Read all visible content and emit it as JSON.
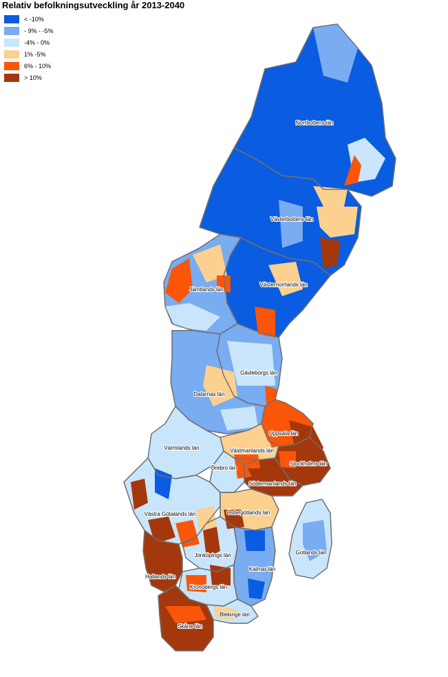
{
  "title": "Relativ befolkningsutveckling år 2013-2040",
  "legend": {
    "items": [
      {
        "label": "< -10%",
        "color": "#0a5ce0"
      },
      {
        "label": "- 9% - -5%",
        "color": "#79acf0"
      },
      {
        "label": "-4% - 0%",
        "color": "#c8e5fb"
      },
      {
        "label": "1% -5%",
        "color": "#fcd08e"
      },
      {
        "label": "6% - 10%",
        "color": "#f9560a"
      },
      {
        "label": "> 10%",
        "color": "#a4380c"
      }
    ]
  },
  "counties": [
    {
      "id": "norrbotten",
      "name": "Norrbottens län",
      "class": 0
    },
    {
      "id": "vasterbotten",
      "name": "Västerbottens län",
      "class": 0
    },
    {
      "id": "vasternorrland",
      "name": "Västernorrlands län",
      "class": 0
    },
    {
      "id": "jamtland",
      "name": "Jämtlands län",
      "class": 1
    },
    {
      "id": "gavleborg",
      "name": "Gävleborgs län",
      "class": 1
    },
    {
      "id": "dalarna",
      "name": "Dalarnas län",
      "class": 1
    },
    {
      "id": "uppsala",
      "name": "Uppsala län",
      "class": 4
    },
    {
      "id": "vastmanland",
      "name": "Västmanlands län",
      "class": 3
    },
    {
      "id": "stockholm",
      "name": "Stockholms län",
      "class": 5
    },
    {
      "id": "varmland",
      "name": "Värmlands län",
      "class": 2
    },
    {
      "id": "orebro",
      "name": "Örebro län",
      "class": 2
    },
    {
      "id": "sodermanland",
      "name": "Södermanlands län",
      "class": 5
    },
    {
      "id": "vastragotaland",
      "name": "Västra Götalands län",
      "class": 2
    },
    {
      "id": "ostergotland",
      "name": "Östergötlands län",
      "class": 3
    },
    {
      "id": "jonkoping",
      "name": "Jönköpings län",
      "class": 2
    },
    {
      "id": "gotland",
      "name": "Gotlands län",
      "class": 2
    },
    {
      "id": "halland",
      "name": "Hallands län",
      "class": 5
    },
    {
      "id": "kalmar",
      "name": "Kalmar län",
      "class": 1
    },
    {
      "id": "kronoberg",
      "name": "Kronobergs län",
      "class": 2
    },
    {
      "id": "blekinge",
      "name": "Blekinge län",
      "class": 2
    },
    {
      "id": "skane",
      "name": "Skåne län",
      "class": 5
    }
  ]
}
